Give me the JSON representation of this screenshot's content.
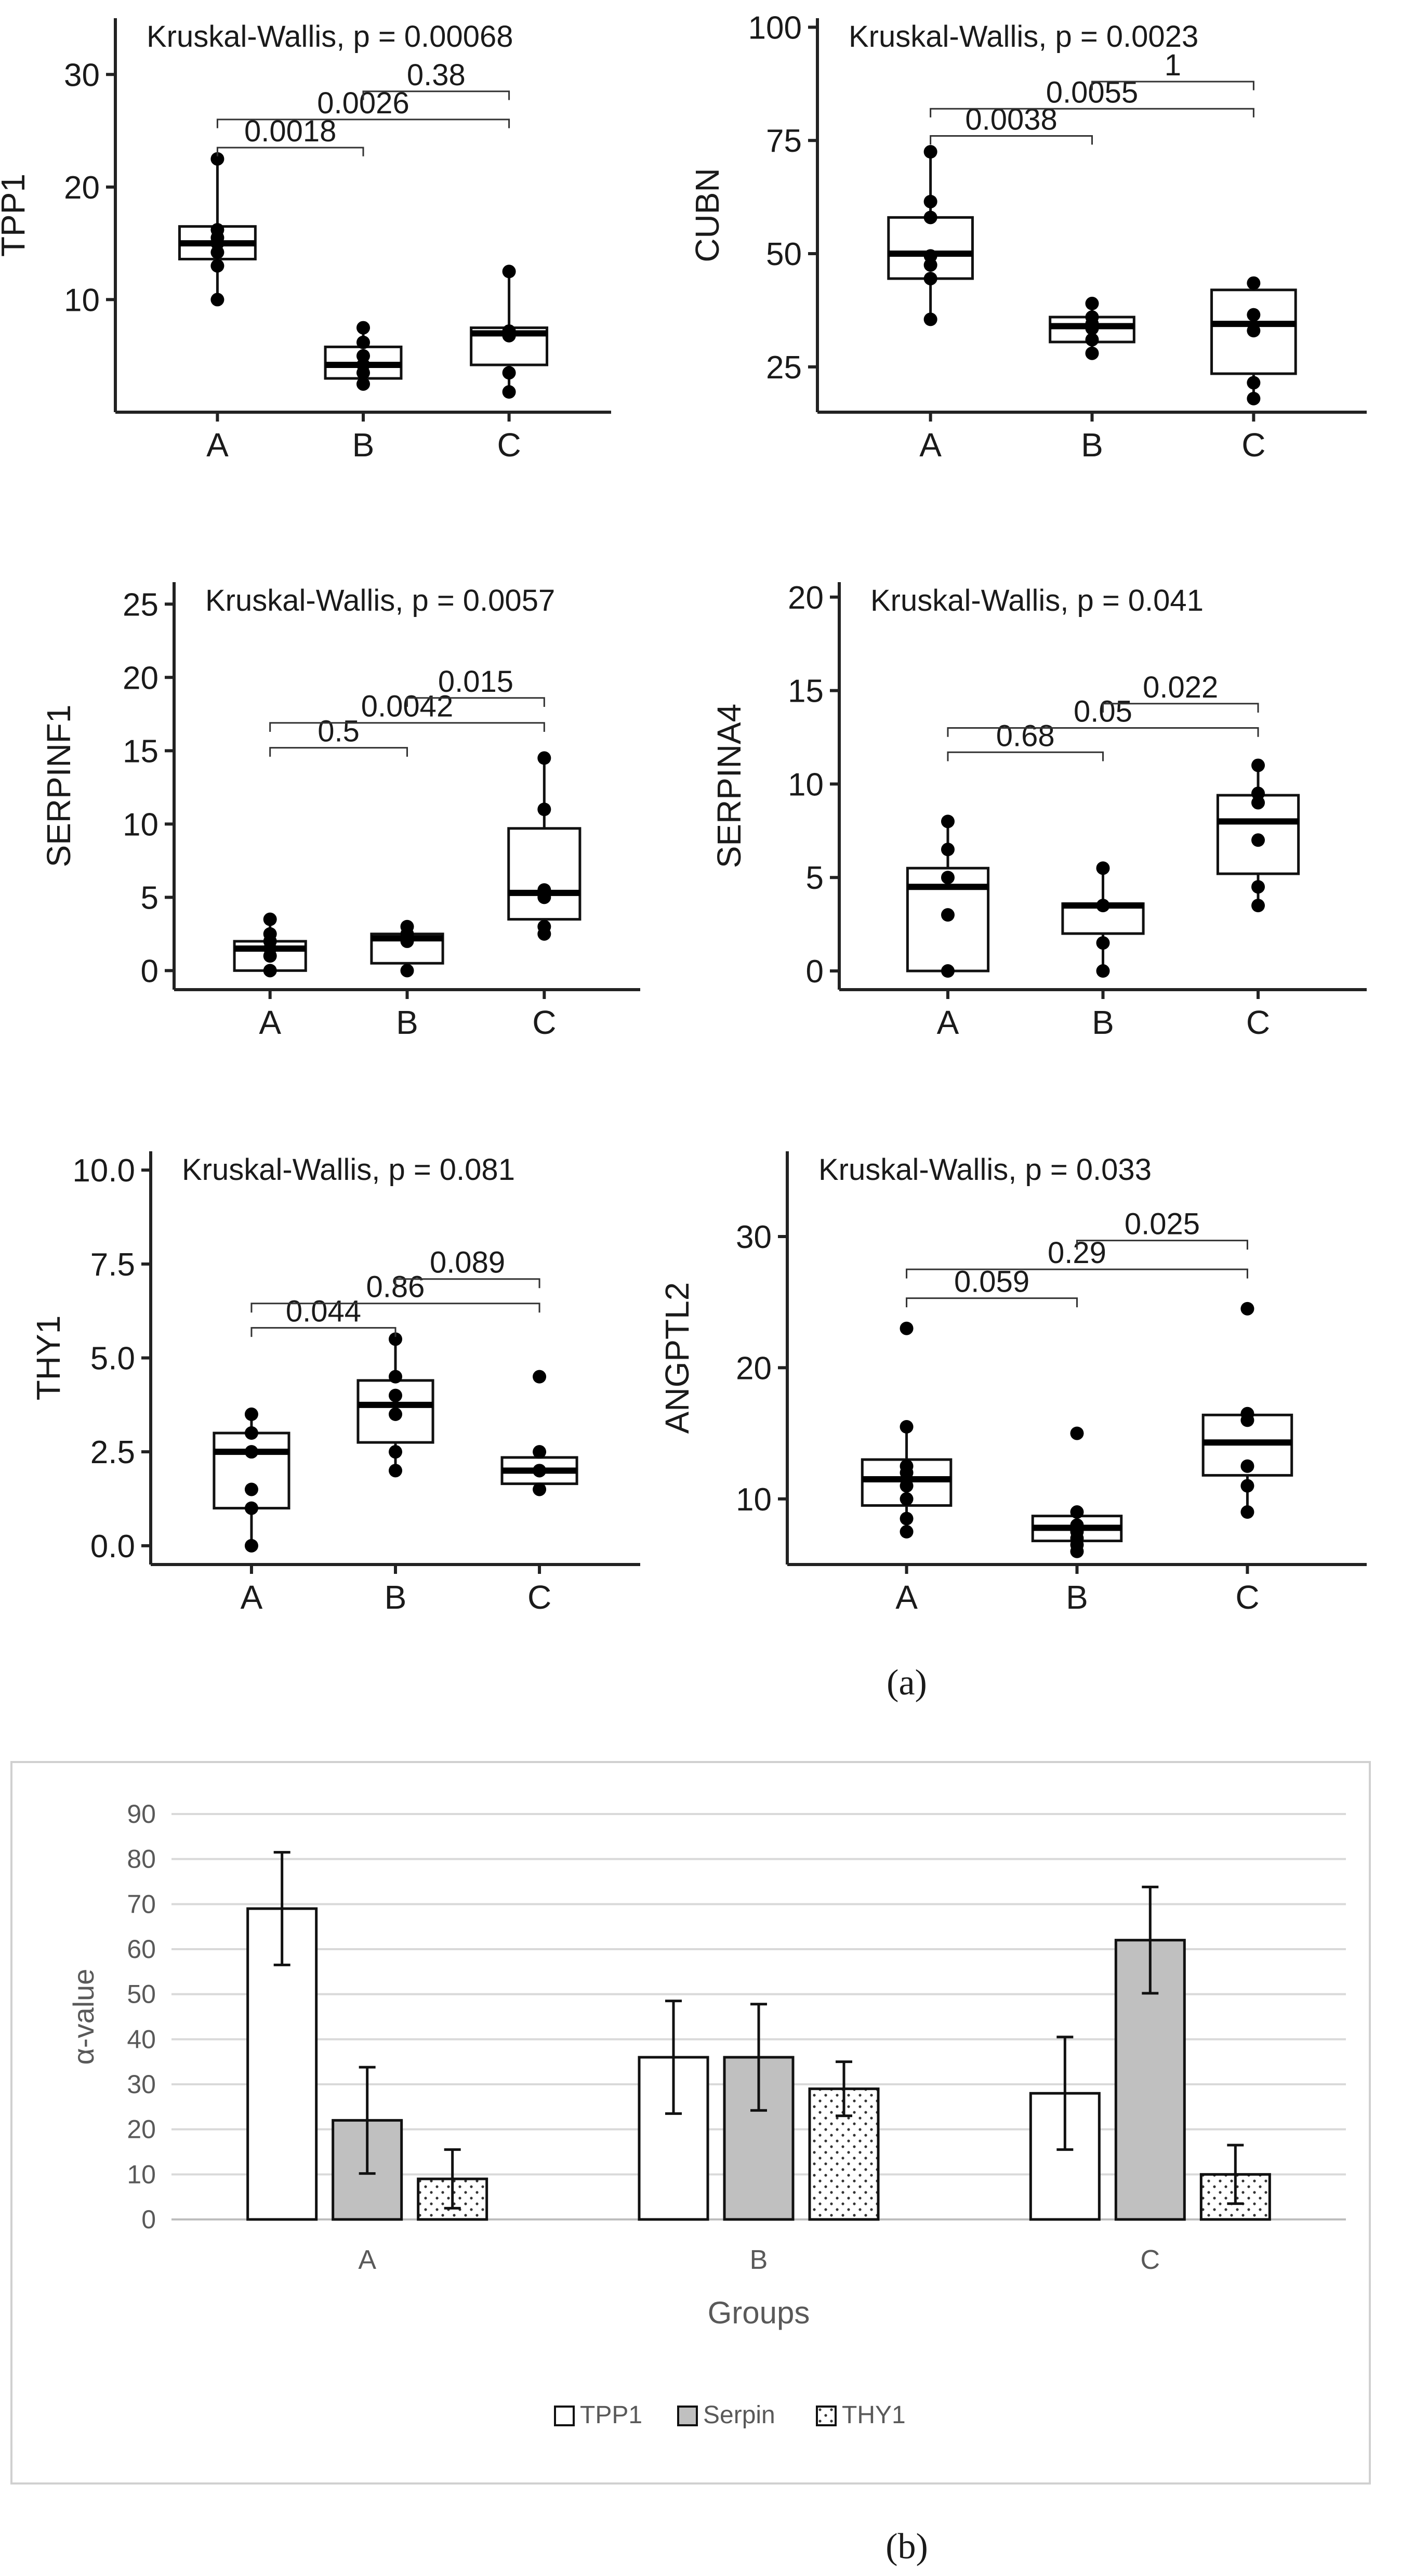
{
  "panel_labels": {
    "a": "(a)",
    "b": "(b)"
  },
  "chart_data": [
    {
      "type": "boxplot",
      "panel": "a",
      "ylabel": "TPP1",
      "title": "Kruskal-Wallis, p = 0.00068",
      "categories": [
        "A",
        "B",
        "C"
      ],
      "ylim": [
        0,
        35
      ],
      "yticks": [
        10,
        20,
        30
      ],
      "ytick_labels": [
        "10",
        "20",
        "30"
      ],
      "boxes": [
        {
          "q1": 13.6,
          "median": 15.0,
          "q3": 16.5,
          "whisker_low": 10.0,
          "whisker_high": 22.5,
          "points": [
            22.5,
            16.2,
            15.5,
            15.0,
            14.2,
            13.0,
            10.0
          ]
        },
        {
          "q1": 3.0,
          "median": 4.2,
          "q3": 5.8,
          "whisker_low": 2.5,
          "whisker_high": 7.5,
          "points": [
            7.5,
            6.2,
            5.0,
            4.2,
            3.5,
            2.5
          ]
        },
        {
          "q1": 4.2,
          "median": 7.0,
          "q3": 7.5,
          "whisker_low": 1.8,
          "whisker_high": 12.5,
          "points": [
            12.5,
            7.2,
            6.8,
            6.8,
            3.5,
            1.8
          ]
        }
      ],
      "comparisons": [
        {
          "from": "A",
          "to": "B",
          "p": "0.0018",
          "y": 23.5
        },
        {
          "from": "A",
          "to": "C",
          "p": "0.0026",
          "y": 26.0
        },
        {
          "from": "B",
          "to": "C",
          "p": "0.38",
          "y": 28.5
        }
      ]
    },
    {
      "type": "boxplot",
      "panel": "a",
      "ylabel": "CUBN",
      "title": "Kruskal-Wallis, p = 0.0023",
      "categories": [
        "A",
        "B",
        "C"
      ],
      "ylim": [
        15,
        102
      ],
      "yticks": [
        25,
        50,
        75,
        100
      ],
      "ytick_labels": [
        "25",
        "50",
        "75",
        "100"
      ],
      "boxes": [
        {
          "q1": 44.5,
          "median": 50.0,
          "q3": 58.0,
          "whisker_low": 35.5,
          "whisker_high": 72.5,
          "points": [
            72.5,
            61.5,
            58.0,
            49.5,
            47.5,
            44.5,
            35.5
          ]
        },
        {
          "q1": 30.5,
          "median": 34.0,
          "q3": 36.0,
          "whisker_low": 28.0,
          "whisker_high": 39.0,
          "points": [
            39.0,
            36.0,
            34.5,
            33.5,
            31.0,
            28.0
          ]
        },
        {
          "q1": 23.5,
          "median": 34.5,
          "q3": 42.0,
          "whisker_low": 18.0,
          "whisker_high": 43.5,
          "points": [
            43.5,
            36.5,
            33.0,
            21.5,
            18.0
          ]
        }
      ],
      "comparisons": [
        {
          "from": "A",
          "to": "B",
          "p": "0.0038",
          "y": 76.0
        },
        {
          "from": "A",
          "to": "C",
          "p": "0.0055",
          "y": 82.0
        },
        {
          "from": "B",
          "to": "C",
          "p": "1",
          "y": 88.0
        }
      ]
    },
    {
      "type": "boxplot",
      "panel": "a",
      "ylabel": "SERPINF1",
      "title": "Kruskal-Wallis, p = 0.0057",
      "categories": [
        "A",
        "B",
        "C"
      ],
      "ylim": [
        -1.3,
        26.5
      ],
      "yticks": [
        0,
        5,
        10,
        15,
        20,
        25
      ],
      "ytick_labels": [
        "0",
        "5",
        "10",
        "15",
        "20",
        "25"
      ],
      "boxes": [
        {
          "q1": 0.0,
          "median": 1.5,
          "q3": 2.0,
          "whisker_low": 0.0,
          "whisker_high": 3.5,
          "points": [
            3.5,
            2.5,
            2.0,
            1.5,
            1.0,
            0.0
          ]
        },
        {
          "q1": 0.5,
          "median": 2.2,
          "q3": 2.5,
          "whisker_low": 0.0,
          "whisker_high": 3.0,
          "points": [
            3.0,
            2.5,
            2.0,
            0.0
          ]
        },
        {
          "q1": 3.5,
          "median": 5.3,
          "q3": 9.7,
          "whisker_low": 2.5,
          "whisker_high": 14.5,
          "points": [
            14.5,
            11.0,
            5.5,
            5.0,
            3.0,
            2.5
          ]
        }
      ],
      "comparisons": [
        {
          "from": "A",
          "to": "B",
          "p": "0.5",
          "y": 15.2
        },
        {
          "from": "A",
          "to": "C",
          "p": "0.0042",
          "y": 16.9
        },
        {
          "from": "B",
          "to": "C",
          "p": "0.015",
          "y": 18.6
        }
      ]
    },
    {
      "type": "boxplot",
      "panel": "a",
      "ylabel": "SERPINA4",
      "title": "Kruskal-Wallis, p = 0.041",
      "categories": [
        "A",
        "B",
        "C"
      ],
      "ylim": [
        -1.0,
        20.8
      ],
      "yticks": [
        0,
        5,
        10,
        15,
        20
      ],
      "ytick_labels": [
        "0",
        "5",
        "10",
        "15",
        "20"
      ],
      "boxes": [
        {
          "q1": 0.0,
          "median": 4.5,
          "q3": 5.5,
          "whisker_low": 0.0,
          "whisker_high": 8.0,
          "points": [
            8.0,
            6.5,
            5.0,
            3.0,
            0.0
          ]
        },
        {
          "q1": 2.0,
          "median": 3.5,
          "q3": 3.6,
          "whisker_low": 0.0,
          "whisker_high": 5.5,
          "points": [
            5.5,
            3.5,
            1.5,
            0.0
          ]
        },
        {
          "q1": 5.2,
          "median": 8.0,
          "q3": 9.4,
          "whisker_low": 3.5,
          "whisker_high": 11.0,
          "points": [
            11.0,
            9.5,
            9.0,
            7.0,
            4.5,
            3.5
          ]
        }
      ],
      "comparisons": [
        {
          "from": "A",
          "to": "B",
          "p": "0.68",
          "y": 11.7
        },
        {
          "from": "A",
          "to": "C",
          "p": "0.05",
          "y": 13.0
        },
        {
          "from": "B",
          "to": "C",
          "p": "0.022",
          "y": 14.3
        }
      ]
    },
    {
      "type": "boxplot",
      "panel": "a",
      "ylabel": "THY1",
      "title": "Kruskal-Wallis, p = 0.081",
      "categories": [
        "A",
        "B",
        "C"
      ],
      "ylim": [
        -0.5,
        10.5
      ],
      "yticks": [
        0,
        2.5,
        5,
        7.5,
        10
      ],
      "ytick_labels": [
        "0.0",
        "2.5",
        "5.0",
        "7.5",
        "10.0"
      ],
      "boxes": [
        {
          "q1": 1.0,
          "median": 2.5,
          "q3": 3.0,
          "whisker_low": 0.0,
          "whisker_high": 3.5,
          "points": [
            3.5,
            3.0,
            2.5,
            1.5,
            1.0,
            0.0
          ]
        },
        {
          "q1": 2.75,
          "median": 3.75,
          "q3": 4.4,
          "whisker_low": 2.0,
          "whisker_high": 5.5,
          "points": [
            5.5,
            4.5,
            4.0,
            3.5,
            2.5,
            2.0
          ]
        },
        {
          "q1": 1.65,
          "median": 2.0,
          "q3": 2.35,
          "whisker_low": 1.5,
          "whisker_high": 2.5,
          "points": [
            4.5,
            2.5,
            2.0,
            2.0,
            1.5
          ]
        }
      ],
      "comparisons": [
        {
          "from": "A",
          "to": "B",
          "p": "0.044",
          "y": 5.8
        },
        {
          "from": "A",
          "to": "C",
          "p": "0.86",
          "y": 6.45
        },
        {
          "from": "B",
          "to": "C",
          "p": "0.089",
          "y": 7.1
        }
      ]
    },
    {
      "type": "boxplot",
      "panel": "a",
      "ylabel": "ANGPTL2",
      "title": "Kruskal-Wallis, p = 0.033",
      "categories": [
        "A",
        "B",
        "C"
      ],
      "ylim": [
        5.0,
        36.5
      ],
      "yticks": [
        10,
        20,
        30
      ],
      "ytick_labels": [
        "10",
        "20",
        "30"
      ],
      "boxes": [
        {
          "q1": 9.5,
          "median": 11.5,
          "q3": 13.0,
          "whisker_low": 7.5,
          "whisker_high": 15.5,
          "points": [
            23.0,
            15.5,
            12.5,
            12.0,
            11.0,
            10.0,
            8.5,
            7.5
          ]
        },
        {
          "q1": 6.8,
          "median": 7.8,
          "q3": 8.7,
          "whisker_low": 6.0,
          "whisker_high": 9.0,
          "points": [
            15.0,
            9.0,
            8.0,
            7.5,
            7.0,
            6.5,
            6.0
          ]
        },
        {
          "q1": 11.8,
          "median": 14.3,
          "q3": 16.4,
          "whisker_low": 9.0,
          "whisker_high": 16.5,
          "points": [
            24.5,
            16.5,
            16.0,
            12.5,
            11.0,
            9.0
          ]
        }
      ],
      "comparisons": [
        {
          "from": "A",
          "to": "B",
          "p": "0.059",
          "y": 25.3
        },
        {
          "from": "A",
          "to": "C",
          "p": "0.29",
          "y": 27.5
        },
        {
          "from": "B",
          "to": "C",
          "p": "0.025",
          "y": 29.7
        }
      ]
    },
    {
      "type": "bar",
      "panel": "b",
      "title": "",
      "xlabel": "Groups",
      "ylabel": "α-value",
      "categories": [
        "A",
        "B",
        "C"
      ],
      "ylim": [
        0,
        90
      ],
      "yticks": [
        0,
        10,
        20,
        30,
        40,
        50,
        60,
        70,
        80,
        90
      ],
      "ytick_labels": [
        "0",
        "10",
        "20",
        "30",
        "40",
        "50",
        "60",
        "70",
        "80",
        "90"
      ],
      "grid": true,
      "legend_position": "bottom",
      "series": [
        {
          "name": "TPP1",
          "pattern": "white",
          "values": [
            69,
            36,
            28
          ],
          "errors": [
            12.5,
            12.5,
            12.5
          ]
        },
        {
          "name": "Serpin",
          "pattern": "gray",
          "values": [
            22,
            36,
            62
          ],
          "errors": [
            11.8,
            11.8,
            11.8
          ]
        },
        {
          "name": "THY1",
          "pattern": "dotted",
          "values": [
            9,
            29,
            10
          ],
          "errors": [
            6.5,
            6.0,
            6.5
          ]
        }
      ]
    }
  ]
}
